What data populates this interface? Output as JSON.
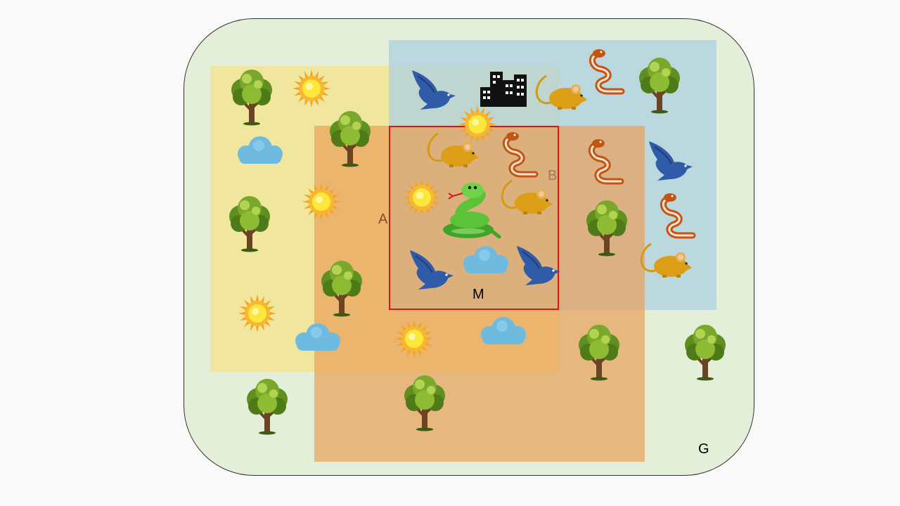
{
  "labels": {
    "g": "G",
    "a": "A",
    "b": "B",
    "m": "M"
  },
  "colors": {
    "region_g": "#e4efd9",
    "region_a": "#f2e492",
    "region_b": "#add0e0",
    "region_overlap": "#e8a05a",
    "region_m_border": "#e8120c",
    "label_a": "#8a4a2a",
    "label_b": "#a0785a"
  },
  "icon_types": [
    "tree-icon",
    "sun-icon",
    "cloud-icon",
    "bird-icon",
    "snake-icon",
    "mouse-icon",
    "city-icon",
    "green-snake-icon"
  ]
}
